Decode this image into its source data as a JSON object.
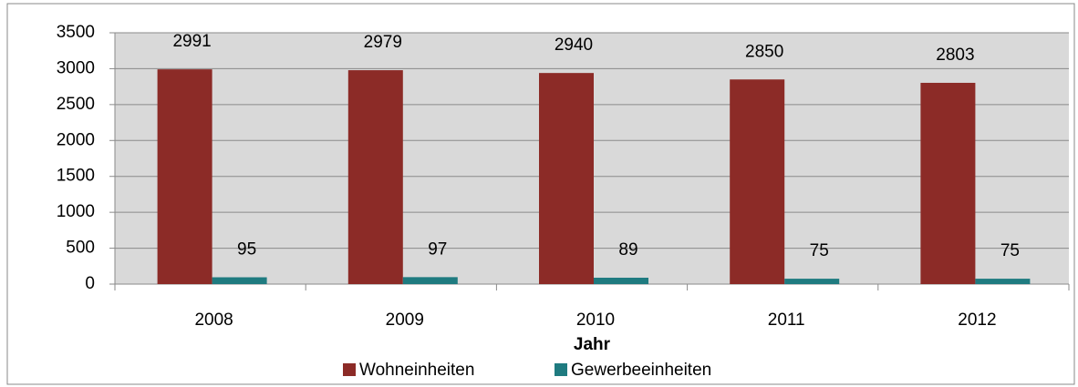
{
  "chart_data": {
    "type": "bar",
    "categories": [
      "2008",
      "2009",
      "2010",
      "2011",
      "2012"
    ],
    "series": [
      {
        "name": "Wohneinheiten",
        "color": "#8c2b27",
        "values": [
          2991,
          2979,
          2940,
          2850,
          2803
        ]
      },
      {
        "name": "Gewerbeeinheiten",
        "color": "#1f7b80",
        "values": [
          95,
          97,
          89,
          75,
          75
        ]
      }
    ],
    "x_label": "Jahr",
    "ylim": [
      0,
      3500
    ],
    "yticks": [
      0,
      500,
      1000,
      1500,
      2000,
      2500,
      3000,
      3500
    ],
    "grid": true,
    "legend": "bottom",
    "plot_background": "#d9d9d9"
  }
}
